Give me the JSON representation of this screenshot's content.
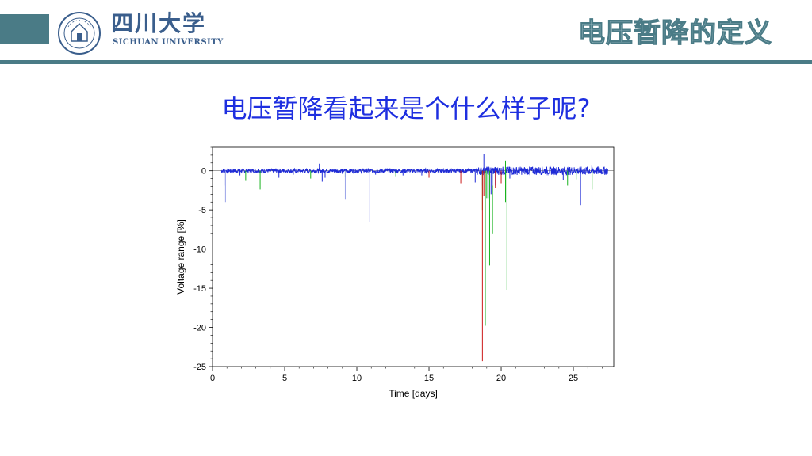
{
  "header": {
    "university_cn": "四川大学",
    "university_en": "SICHUAN UNIVERSITY",
    "slide_title": "电压暂降的定义",
    "accent_color": "#4a7b86"
  },
  "slide": {
    "subtitle": "电压暂降看起来是个什么样子呢?"
  },
  "chart_data": {
    "type": "line",
    "title": "",
    "xlabel": "Time [days]",
    "ylabel": "Voltage range [%]",
    "xlim": [
      0,
      27.8
    ],
    "ylim": [
      -25,
      3
    ],
    "xticks": [
      0,
      5,
      10,
      15,
      20,
      25
    ],
    "yticks": [
      0,
      -5,
      -10,
      -15,
      -20,
      -25
    ],
    "grid": false,
    "legend": "none",
    "colors": {
      "blue": "#1f2bd6",
      "green": "#19b31e",
      "red": "#cc1a1a",
      "lightblue": "#9aa3e8"
    },
    "baseline": {
      "x_start": 0.6,
      "x_end": 27.4,
      "band_pct": 0.6,
      "noisy_region": [
        18.3,
        27.4
      ]
    },
    "series": [
      {
        "color": "blue",
        "dips": [
          [
            0.8,
            -1.9
          ],
          [
            1.9,
            -0.6
          ],
          [
            4.6,
            -0.9
          ],
          [
            5.6,
            -0.5
          ],
          [
            7.6,
            -1.4
          ],
          [
            7.8,
            -0.9
          ],
          [
            9.0,
            -0.4
          ],
          [
            10.9,
            -6.5
          ],
          [
            11.3,
            -0.5
          ],
          [
            13.2,
            -0.6
          ],
          [
            14.5,
            -0.6
          ],
          [
            18.2,
            -1.5
          ],
          [
            18.6,
            -1.9
          ],
          [
            18.9,
            -17.8
          ],
          [
            19.1,
            -3.5
          ],
          [
            19.3,
            -3.0
          ],
          [
            19.6,
            -1.9
          ],
          [
            20.6,
            -1.0
          ],
          [
            23.6,
            -0.9
          ],
          [
            24.3,
            -1.2
          ],
          [
            25.5,
            -4.4
          ]
        ]
      },
      {
        "color": "green",
        "dips": [
          [
            2.3,
            -1.3
          ],
          [
            3.3,
            -2.4
          ],
          [
            6.8,
            -1.0
          ],
          [
            9.2,
            -0.8
          ],
          [
            12.7,
            -0.7
          ],
          [
            18.7,
            -5.0
          ],
          [
            18.9,
            -19.8
          ],
          [
            19.0,
            -3.5
          ],
          [
            19.2,
            -12.1
          ],
          [
            19.4,
            -8.0
          ],
          [
            20.3,
            -4.0
          ],
          [
            20.4,
            -15.2
          ],
          [
            24.6,
            -1.9
          ],
          [
            25.2,
            -1.1
          ],
          [
            26.3,
            -2.4
          ]
        ]
      },
      {
        "color": "red",
        "dips": [
          [
            15.0,
            -0.9
          ],
          [
            17.2,
            -1.6
          ],
          [
            18.7,
            -24.3
          ],
          [
            18.8,
            -3.2
          ],
          [
            19.6,
            -2.2
          ],
          [
            20.0,
            -1.6
          ]
        ]
      },
      {
        "color": "lightblue",
        "dips": [
          [
            0.9,
            -4.0
          ],
          [
            9.2,
            -3.7
          ],
          [
            18.6,
            -2.3
          ],
          [
            19.4,
            -1.9
          ]
        ]
      }
    ],
    "spikes": [
      [
        18.8,
        2.1
      ],
      [
        20.3,
        1.3
      ],
      [
        7.4,
        0.9
      ]
    ]
  }
}
